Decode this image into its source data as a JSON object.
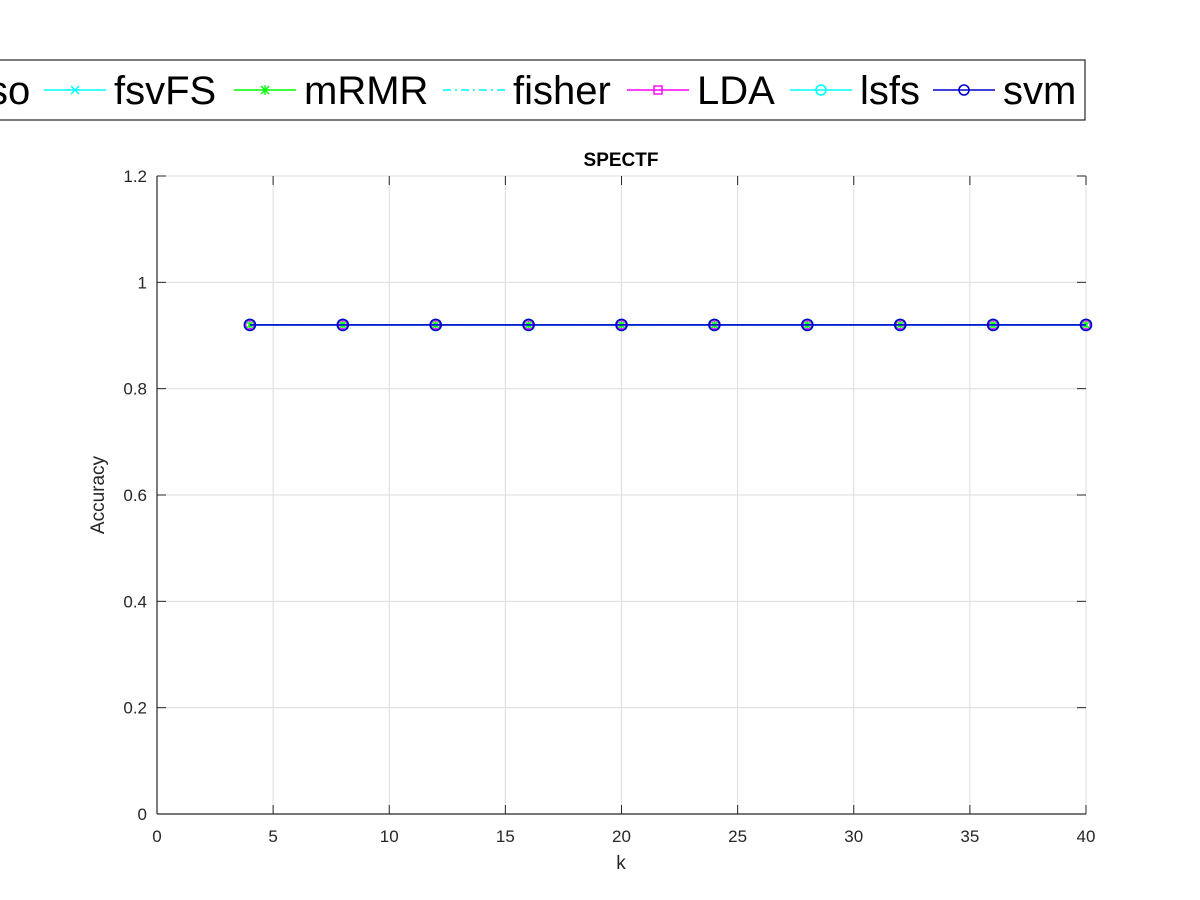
{
  "chart_data": {
    "type": "line",
    "title": "SPECTF",
    "xlabel": "k",
    "ylabel": "Accuracy",
    "xlim": [
      0,
      40
    ],
    "ylim": [
      0,
      1.2
    ],
    "xticks": [
      0,
      5,
      10,
      15,
      20,
      25,
      30,
      35,
      40
    ],
    "yticks": [
      0,
      0.2,
      0.4,
      0.6,
      0.8,
      1,
      1.2
    ],
    "xtick_labels": [
      "0",
      "5",
      "10",
      "15",
      "20",
      "25",
      "30",
      "35",
      "40"
    ],
    "ytick_labels": [
      "0",
      "0.2",
      "0.4",
      "0.6",
      "0.8",
      "1",
      "1.2"
    ],
    "grid": true,
    "legend_position": "top, horizontal, clipped on the left",
    "x": [
      4,
      8,
      12,
      16,
      20,
      24,
      28,
      32,
      36,
      40
    ],
    "series": [
      {
        "name": "so",
        "color": "#000000",
        "marker": "none",
        "line": "solid",
        "legend_clipped": true,
        "values": [
          0.92,
          0.92,
          0.92,
          0.92,
          0.92,
          0.92,
          0.92,
          0.92,
          0.92,
          0.92
        ]
      },
      {
        "name": "fsvFS",
        "color": "#00ffff",
        "marker": "x",
        "line": "solid",
        "values": [
          0.92,
          0.92,
          0.92,
          0.92,
          0.92,
          0.92,
          0.92,
          0.92,
          0.92,
          0.92
        ]
      },
      {
        "name": "mRMR",
        "color": "#00ff00",
        "marker": "asterisk",
        "line": "solid",
        "values": [
          0.92,
          0.92,
          0.92,
          0.92,
          0.92,
          0.92,
          0.92,
          0.92,
          0.92,
          0.92
        ]
      },
      {
        "name": "fisher",
        "color": "#00ffff",
        "marker": "none",
        "line": "dashdot",
        "values": [
          0.92,
          0.92,
          0.92,
          0.92,
          0.92,
          0.92,
          0.92,
          0.92,
          0.92,
          0.92
        ]
      },
      {
        "name": "LDA",
        "color": "#ff00ff",
        "marker": "square",
        "line": "solid",
        "values": [
          0.92,
          0.92,
          0.92,
          0.92,
          0.92,
          0.92,
          0.92,
          0.92,
          0.92,
          0.92
        ]
      },
      {
        "name": "lsfs",
        "color": "#00ffff",
        "marker": "circle",
        "line": "solid",
        "values": [
          0.92,
          0.92,
          0.92,
          0.92,
          0.92,
          0.92,
          0.92,
          0.92,
          0.92,
          0.92
        ]
      },
      {
        "name": "svm",
        "color": "#0000cd",
        "marker": "circle",
        "line": "solid",
        "values": [
          0.92,
          0.92,
          0.92,
          0.92,
          0.92,
          0.92,
          0.92,
          0.92,
          0.92,
          0.92
        ]
      }
    ]
  }
}
